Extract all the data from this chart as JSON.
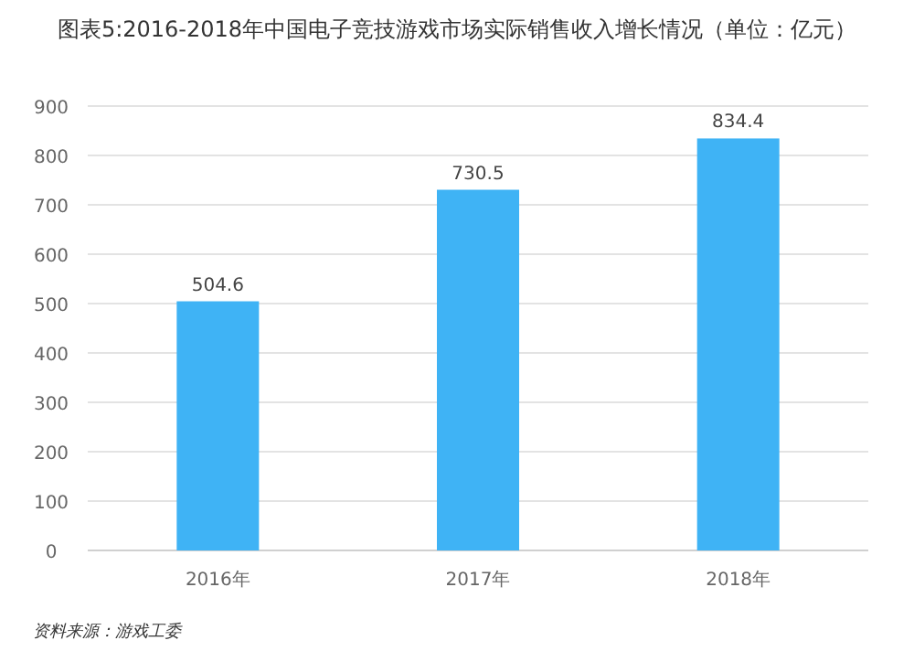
{
  "chart_data": {
    "type": "bar",
    "title": "图表5:2016-2018年中国电子竞技游戏市场实际销售收入增长情况（单位：亿元）",
    "categories": [
      "2016年",
      "2017年",
      "2018年"
    ],
    "values": [
      504.6,
      730.5,
      834.4
    ],
    "color": "#3fb3f5",
    "ylim": [
      0,
      900
    ],
    "yticks": [
      0,
      100,
      200,
      300,
      400,
      500,
      600,
      700,
      800,
      900
    ],
    "grid": "y",
    "data_labels": true,
    "annotations": [
      "资料来源：游戏工委"
    ]
  }
}
